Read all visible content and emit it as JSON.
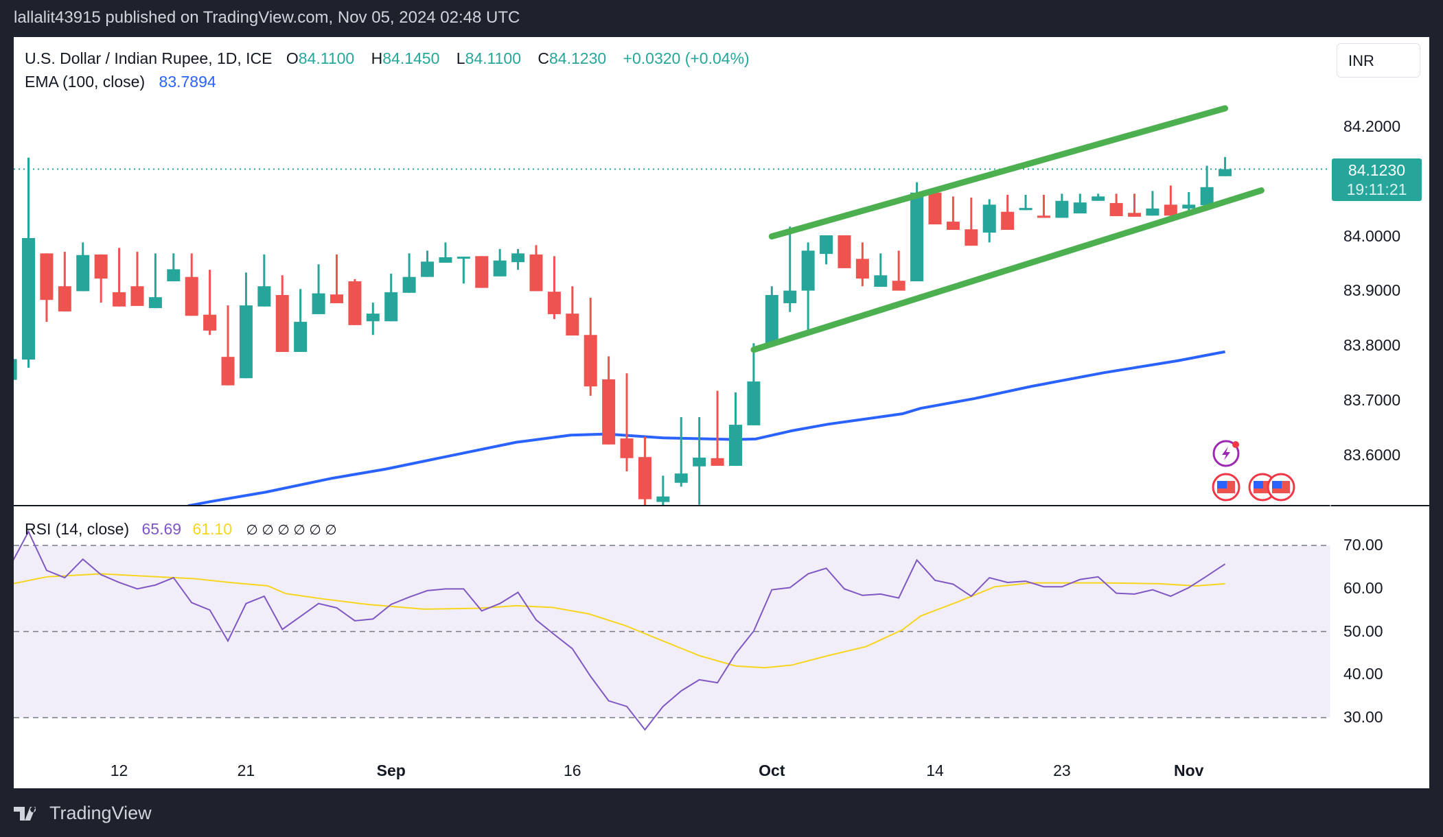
{
  "topbar": {
    "text": "lallalit43915 published on TradingView.com, Nov 05, 2024 02:48 UTC"
  },
  "legend": {
    "symbol": "U.S. Dollar / Indian Rupee, 1D, ICE",
    "o_label": "O",
    "o": "84.1100",
    "h_label": "H",
    "h": "84.1450",
    "l_label": "L",
    "l": "84.1100",
    "c_label": "C",
    "c": "84.1230",
    "change": "+0.0320 (+0.04%)",
    "ema_label": "EMA (100, close)",
    "ema_value": "83.7894"
  },
  "rsi_legend": {
    "label": "RSI (14, close)",
    "value": "65.69",
    "ma_value": "61.10",
    "empty": "∅ ∅ ∅ ∅ ∅ ∅"
  },
  "currency_button": "INR",
  "last_price": {
    "value": "84.1230",
    "countdown": "19:11:21"
  },
  "footer": {
    "brand": "TradingView"
  },
  "colors": {
    "up": "#26a69a",
    "down": "#ef5350",
    "ema": "#2962ff",
    "channel": "#4caf50",
    "rsi": "#7e57c2",
    "rsi_ma": "#f7d51d",
    "rsi_band": "#f1edf9"
  },
  "chart_data": {
    "type": "candlestick",
    "title": "U.S. Dollar / Indian Rupee, 1D, ICE",
    "price_axis": {
      "ticks": [
        "84.2000",
        "84.0000",
        "83.9000",
        "83.8000",
        "83.7000",
        "83.6000"
      ],
      "ylim": [
        83.5,
        84.265
      ]
    },
    "time_axis": [
      {
        "label": "12",
        "bar": 6,
        "bold": false
      },
      {
        "label": "21",
        "bar": 13,
        "bold": false
      },
      {
        "label": "Sep",
        "bar": 21,
        "bold": true
      },
      {
        "label": "16",
        "bar": 31,
        "bold": false
      },
      {
        "label": "Oct",
        "bar": 42,
        "bold": true
      },
      {
        "label": "14",
        "bar": 51,
        "bold": false
      },
      {
        "label": "23",
        "bar": 58,
        "bold": false
      },
      {
        "label": "Nov",
        "bar": 65,
        "bold": true
      }
    ],
    "ohlc": [
      [
        83.738,
        83.78,
        83.73,
        83.776
      ],
      [
        83.775,
        84.144,
        83.76,
        83.997
      ],
      [
        83.969,
        83.969,
        83.844,
        83.884
      ],
      [
        83.909,
        83.972,
        83.863,
        83.863
      ],
      [
        83.9,
        83.989,
        83.9,
        83.966
      ],
      [
        83.967,
        83.967,
        83.879,
        83.923
      ],
      [
        83.898,
        83.979,
        83.872,
        83.872
      ],
      [
        83.909,
        83.972,
        83.873,
        83.873
      ],
      [
        83.869,
        83.969,
        83.869,
        83.889
      ],
      [
        83.918,
        83.969,
        83.918,
        83.94
      ],
      [
        83.926,
        83.969,
        83.855,
        83.855
      ],
      [
        83.857,
        83.939,
        83.82,
        83.828
      ],
      [
        83.78,
        83.874,
        83.728,
        83.728
      ],
      [
        83.741,
        83.934,
        83.741,
        83.874
      ],
      [
        83.872,
        83.967,
        83.872,
        83.909
      ],
      [
        83.893,
        83.929,
        83.789,
        83.789
      ],
      [
        83.789,
        83.904,
        83.789,
        83.844
      ],
      [
        83.858,
        83.949,
        83.858,
        83.896
      ],
      [
        83.894,
        83.967,
        83.878,
        83.878
      ],
      [
        83.918,
        83.922,
        83.838,
        83.838
      ],
      [
        83.845,
        83.879,
        83.82,
        83.859
      ],
      [
        83.845,
        83.932,
        83.845,
        83.898
      ],
      [
        83.897,
        83.969,
        83.897,
        83.926
      ],
      [
        83.926,
        83.974,
        83.926,
        83.954
      ],
      [
        83.952,
        83.989,
        83.952,
        83.962
      ],
      [
        83.963,
        83.963,
        83.914,
        83.963
      ],
      [
        83.964,
        83.964,
        83.906,
        83.906
      ],
      [
        83.927,
        83.977,
        83.927,
        83.956
      ],
      [
        83.953,
        83.977,
        83.939,
        83.969
      ],
      [
        83.967,
        83.984,
        83.9,
        83.9
      ],
      [
        83.899,
        83.964,
        83.849,
        83.858
      ],
      [
        83.859,
        83.909,
        83.819,
        83.819
      ],
      [
        83.82,
        83.888,
        83.709,
        83.726
      ],
      [
        83.739,
        83.781,
        83.62,
        83.62
      ],
      [
        83.631,
        83.75,
        83.571,
        83.595
      ],
      [
        83.597,
        83.634,
        83.5,
        83.52
      ],
      [
        83.515,
        83.563,
        83.5,
        83.525
      ],
      [
        83.55,
        83.67,
        83.543,
        83.567
      ],
      [
        83.58,
        83.67,
        83.51,
        83.596
      ],
      [
        83.595,
        83.718,
        83.581,
        83.581
      ],
      [
        83.581,
        83.715,
        83.581,
        83.656
      ],
      [
        83.655,
        83.805,
        83.655,
        83.735
      ],
      [
        83.801,
        83.909,
        83.801,
        83.893
      ],
      [
        83.878,
        84.018,
        83.862,
        83.901
      ],
      [
        83.901,
        83.989,
        83.829,
        83.974
      ],
      [
        83.968,
        84.002,
        83.949,
        84.002
      ],
      [
        84.002,
        84.002,
        83.942,
        83.942
      ],
      [
        83.959,
        83.989,
        83.909,
        83.923
      ],
      [
        83.908,
        83.969,
        83.908,
        83.929
      ],
      [
        83.919,
        83.974,
        83.901,
        83.901
      ],
      [
        83.918,
        84.099,
        83.918,
        84.08
      ],
      [
        84.08,
        84.08,
        84.022,
        84.022
      ],
      [
        84.027,
        84.073,
        84.012,
        84.012
      ],
      [
        84.013,
        84.071,
        83.983,
        83.983
      ],
      [
        84.007,
        84.068,
        83.989,
        84.058
      ],
      [
        84.045,
        84.076,
        84.012,
        84.012
      ],
      [
        84.048,
        84.076,
        84.048,
        84.052
      ],
      [
        84.038,
        84.076,
        84.034,
        84.034
      ],
      [
        84.034,
        84.078,
        84.034,
        84.065
      ],
      [
        84.042,
        84.078,
        84.042,
        84.062
      ],
      [
        84.065,
        84.078,
        84.065,
        84.073
      ],
      [
        84.061,
        84.078,
        84.037,
        84.037
      ],
      [
        84.043,
        84.078,
        84.036,
        84.036
      ],
      [
        84.038,
        84.083,
        84.038,
        84.051
      ],
      [
        84.058,
        84.093,
        84.038,
        84.038
      ],
      [
        84.051,
        84.081,
        84.046,
        84.058
      ],
      [
        84.057,
        84.129,
        84.057,
        84.09
      ],
      [
        84.11,
        84.145,
        84.11,
        84.123
      ]
    ],
    "ema100": [
      [
        9.8,
        83.508
      ],
      [
        11.1,
        83.516
      ],
      [
        14.1,
        83.533
      ],
      [
        17.7,
        83.558
      ],
      [
        20.7,
        83.575
      ],
      [
        24.8,
        83.603
      ],
      [
        27.9,
        83.624
      ],
      [
        30.9,
        83.637
      ],
      [
        32.9,
        83.639
      ],
      [
        36,
        83.632
      ],
      [
        40,
        83.629
      ],
      [
        41.1,
        83.63
      ],
      [
        43.1,
        83.645
      ],
      [
        45.1,
        83.657
      ],
      [
        49.2,
        83.676
      ],
      [
        50.2,
        83.686
      ],
      [
        53.2,
        83.704
      ],
      [
        56.3,
        83.726
      ],
      [
        60.3,
        83.751
      ],
      [
        64.4,
        83.773
      ],
      [
        67,
        83.7894
      ]
    ],
    "channel": {
      "upper": [
        [
          42,
          84.0
        ],
        [
          67,
          84.234
        ]
      ],
      "lower": [
        [
          41,
          83.793
        ],
        [
          69,
          84.084
        ]
      ]
    },
    "last_price": 84.123,
    "rsi": {
      "levels": [
        70,
        50,
        30
      ],
      "ticks": [
        "70.00",
        "60.00",
        "50.00",
        "40.00",
        "30.00"
      ],
      "ylim": [
        25,
        75
      ],
      "values": [
        65.3,
        73.2,
        64.2,
        62.5,
        66.8,
        63.2,
        61.4,
        59.9,
        60.8,
        62.5,
        56.7,
        55.0,
        47.8,
        56.5,
        58.2,
        50.5,
        53.5,
        56.5,
        55.5,
        52.5,
        52.9,
        56.3,
        58.0,
        59.5,
        59.9,
        59.9,
        54.8,
        56.5,
        59.1,
        52.7,
        49.3,
        46.0,
        39.6,
        33.9,
        32.6,
        27.2,
        32.6,
        36.2,
        38.8,
        38.1,
        44.8,
        50.1,
        59.7,
        60.2,
        63.4,
        64.7,
        59.9,
        58.4,
        58.7,
        57.8,
        66.6,
        61.9,
        61.0,
        58.2,
        62.5,
        61.4,
        61.7,
        60.4,
        60.4,
        62.1,
        62.7,
        58.9,
        58.7,
        59.7,
        58.2,
        60.2,
        62.9,
        65.69
      ],
      "ma": [
        [
          0,
          61.0
        ],
        [
          2,
          62.7
        ],
        [
          5,
          63.4
        ],
        [
          8.1,
          62.7
        ],
        [
          10.1,
          62.3
        ],
        [
          12.1,
          61.4
        ],
        [
          14.2,
          60.6
        ],
        [
          15.2,
          58.8
        ],
        [
          17.2,
          57.6
        ],
        [
          19.7,
          56.3
        ],
        [
          22.8,
          55.2
        ],
        [
          25.8,
          55.4
        ],
        [
          27.9,
          56.0
        ],
        [
          29.9,
          55.6
        ],
        [
          31.9,
          54.1
        ],
        [
          33.9,
          51.4
        ],
        [
          36,
          47.8
        ],
        [
          38,
          44.4
        ],
        [
          40,
          42.0
        ],
        [
          41.6,
          41.6
        ],
        [
          43.1,
          42.2
        ],
        [
          45.1,
          44.4
        ],
        [
          47.2,
          46.5
        ],
        [
          49.2,
          50.4
        ],
        [
          50.2,
          53.6
        ],
        [
          52.2,
          56.8
        ],
        [
          54.3,
          60.4
        ],
        [
          56.3,
          61.3
        ],
        [
          58.3,
          61.3
        ],
        [
          60.3,
          61.3
        ],
        [
          63.4,
          61.1
        ],
        [
          65.4,
          60.6
        ],
        [
          67,
          61.1
        ]
      ]
    }
  }
}
